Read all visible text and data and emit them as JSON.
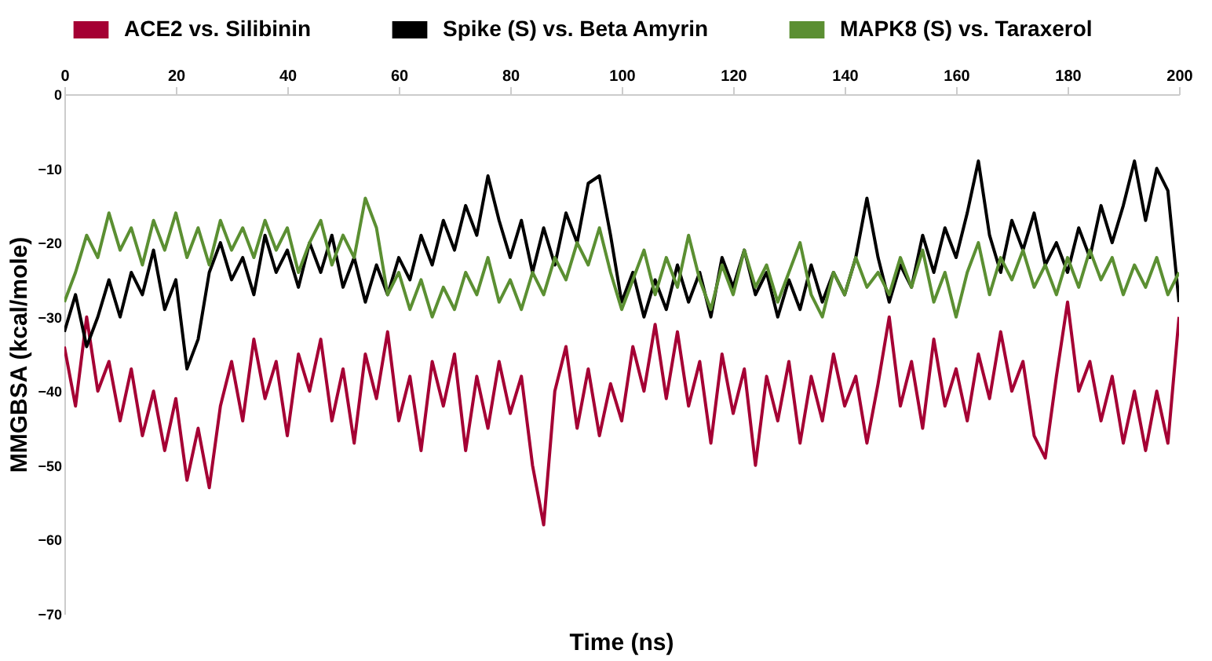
{
  "chart_data": {
    "type": "line",
    "xlabel": "Time (ns)",
    "ylabel": "MMGBSA (kcal/mole)",
    "x": [
      0,
      2,
      4,
      6,
      8,
      10,
      12,
      14,
      16,
      18,
      20,
      22,
      24,
      26,
      28,
      30,
      32,
      34,
      36,
      38,
      40,
      42,
      44,
      46,
      48,
      50,
      52,
      54,
      56,
      58,
      60,
      62,
      64,
      66,
      68,
      70,
      72,
      74,
      76,
      78,
      80,
      82,
      84,
      86,
      88,
      90,
      92,
      94,
      96,
      98,
      100,
      102,
      104,
      106,
      108,
      110,
      112,
      114,
      116,
      118,
      120,
      122,
      124,
      126,
      128,
      130,
      132,
      134,
      136,
      138,
      140,
      142,
      144,
      146,
      148,
      150,
      152,
      154,
      156,
      158,
      160,
      162,
      164,
      166,
      168,
      170,
      172,
      174,
      176,
      178,
      180,
      182,
      184,
      186,
      188,
      190,
      192,
      194,
      196,
      198,
      200
    ],
    "xlim": [
      0,
      200
    ],
    "xticks": [
      0,
      20,
      40,
      60,
      80,
      100,
      120,
      140,
      160,
      180,
      200
    ],
    "ylim": [
      -70,
      0
    ],
    "yticks": [
      0,
      -10,
      -20,
      -30,
      -40,
      -50,
      -60,
      -70
    ],
    "grid": false,
    "legend": "top",
    "marker": "none",
    "line_style": "solid",
    "series": [
      {
        "name": "ACE2 vs. Silibinin",
        "color": "#a50034",
        "values": [
          -34,
          -42,
          -30,
          -40,
          -36,
          -44,
          -37,
          -46,
          -40,
          -48,
          -41,
          -52,
          -45,
          -53,
          -42,
          -36,
          -44,
          -33,
          -41,
          -36,
          -46,
          -35,
          -40,
          -33,
          -44,
          -37,
          -47,
          -35,
          -41,
          -32,
          -44,
          -38,
          -48,
          -36,
          -42,
          -35,
          -48,
          -38,
          -45,
          -36,
          -43,
          -38,
          -50,
          -58,
          -40,
          -34,
          -45,
          -37,
          -46,
          -39,
          -44,
          -34,
          -40,
          -31,
          -41,
          -32,
          -42,
          -36,
          -47,
          -35,
          -43,
          -37,
          -50,
          -38,
          -44,
          -36,
          -47,
          -38,
          -44,
          -35,
          -42,
          -38,
          -47,
          -39,
          -30,
          -42,
          -36,
          -45,
          -33,
          -42,
          -37,
          -44,
          -35,
          -41,
          -32,
          -40,
          -36,
          -46,
          -49,
          -38,
          -28,
          -40,
          -36,
          -44,
          -38,
          -47,
          -40,
          -48,
          -40,
          -47,
          -30
        ]
      },
      {
        "name": "Spike (S) vs. Beta Amyrin",
        "color": "#000000",
        "values": [
          -32,
          -27,
          -34,
          -30,
          -25,
          -30,
          -24,
          -27,
          -21,
          -29,
          -25,
          -37,
          -33,
          -24,
          -20,
          -25,
          -22,
          -27,
          -19,
          -24,
          -21,
          -26,
          -20,
          -24,
          -19,
          -26,
          -22,
          -28,
          -23,
          -27,
          -22,
          -25,
          -19,
          -23,
          -17,
          -21,
          -15,
          -19,
          -11,
          -17,
          -22,
          -17,
          -24,
          -18,
          -23,
          -16,
          -20,
          -12,
          -11,
          -19,
          -28,
          -24,
          -30,
          -25,
          -29,
          -23,
          -28,
          -24,
          -30,
          -22,
          -26,
          -21,
          -27,
          -24,
          -30,
          -25,
          -29,
          -23,
          -28,
          -24,
          -27,
          -22,
          -14,
          -22,
          -28,
          -23,
          -26,
          -19,
          -24,
          -18,
          -22,
          -16,
          -9,
          -19,
          -24,
          -17,
          -21,
          -16,
          -23,
          -20,
          -24,
          -18,
          -22,
          -15,
          -20,
          -15,
          -9,
          -17,
          -10,
          -13,
          -28
        ]
      },
      {
        "name": "MAPK8 (S) vs. Taraxerol",
        "color": "#5b8f32",
        "values": [
          -28,
          -24,
          -19,
          -22,
          -16,
          -21,
          -18,
          -23,
          -17,
          -21,
          -16,
          -22,
          -18,
          -23,
          -17,
          -21,
          -18,
          -22,
          -17,
          -21,
          -18,
          -24,
          -20,
          -17,
          -23,
          -19,
          -22,
          -14,
          -18,
          -27,
          -24,
          -29,
          -25,
          -30,
          -26,
          -29,
          -24,
          -27,
          -22,
          -28,
          -25,
          -29,
          -24,
          -27,
          -22,
          -25,
          -20,
          -23,
          -18,
          -24,
          -29,
          -25,
          -21,
          -27,
          -22,
          -26,
          -19,
          -25,
          -29,
          -23,
          -27,
          -21,
          -26,
          -23,
          -28,
          -24,
          -20,
          -27,
          -30,
          -24,
          -27,
          -22,
          -26,
          -24,
          -27,
          -22,
          -26,
          -21,
          -28,
          -24,
          -30,
          -24,
          -20,
          -27,
          -22,
          -25,
          -21,
          -26,
          -23,
          -27,
          -22,
          -26,
          -21,
          -25,
          -22,
          -27,
          -23,
          -26,
          -22,
          -27,
          -24
        ]
      }
    ]
  }
}
